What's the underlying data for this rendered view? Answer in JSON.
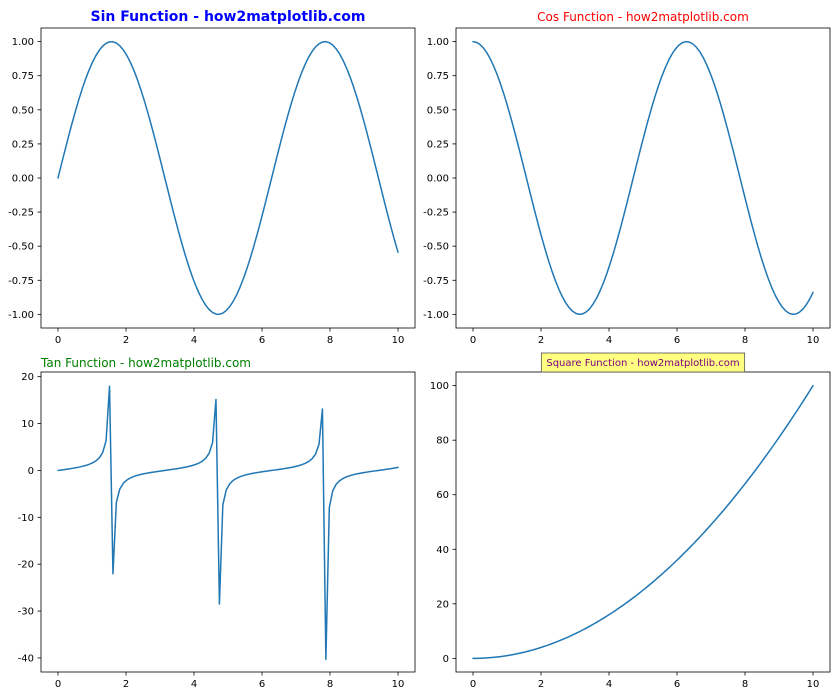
{
  "chart_data": [
    {
      "type": "line",
      "title": "Sin Function - how2matplotlib.com",
      "title_color": "#0000ff",
      "title_style": "bold",
      "title_align": "center",
      "line_color": "#1f77b4",
      "function": "sin",
      "x_range": [
        0,
        10
      ],
      "xlim": [
        -0.5,
        10.5
      ],
      "ylim": [
        -1.1,
        1.1
      ],
      "xticks": [
        0,
        2,
        4,
        6,
        8,
        10
      ],
      "yticks": [
        -1.0,
        -0.75,
        -0.5,
        -0.25,
        0.0,
        0.25,
        0.5,
        0.75,
        1.0
      ],
      "ytick_labels": [
        "-1.00",
        "-0.75",
        "-0.50",
        "-0.25",
        "0.00",
        "0.25",
        "0.50",
        "0.75",
        "1.00"
      ],
      "grid": false
    },
    {
      "type": "line",
      "title": "Cos Function - how2matplotlib.com",
      "title_color": "#ff0000",
      "title_style": "normal",
      "title_align": "center",
      "line_color": "#1f77b4",
      "function": "cos",
      "x_range": [
        0,
        10
      ],
      "xlim": [
        -0.5,
        10.5
      ],
      "ylim": [
        -1.1,
        1.1
      ],
      "xticks": [
        0,
        2,
        4,
        6,
        8,
        10
      ],
      "yticks": [
        -1.0,
        -0.75,
        -0.5,
        -0.25,
        0.0,
        0.25,
        0.5,
        0.75,
        1.0
      ],
      "ytick_labels": [
        "-1.00",
        "-0.75",
        "-0.50",
        "-0.25",
        "0.00",
        "0.25",
        "0.50",
        "0.75",
        "1.00"
      ],
      "grid": false
    },
    {
      "type": "line",
      "title": "Tan Function - how2matplotlib.com",
      "title_color": "#008000",
      "title_style": "normal",
      "title_align": "left",
      "line_color": "#1f77b4",
      "function": "tan",
      "x_range": [
        0,
        10
      ],
      "xlim": [
        -0.5,
        10.5
      ],
      "ylim": [
        -43,
        21
      ],
      "xticks": [
        0,
        2,
        4,
        6,
        8,
        10
      ],
      "yticks": [
        -40,
        -30,
        -20,
        -10,
        0,
        10,
        20
      ],
      "ytick_labels": [
        "-40",
        "-30",
        "-20",
        "-10",
        "0",
        "10",
        "20"
      ],
      "grid": false
    },
    {
      "type": "line",
      "title": "Square Function - how2matplotlib.com",
      "title_color": "#800080",
      "title_style": "boxed",
      "title_box_color": "#ffff80",
      "title_align": "center",
      "line_color": "#1f77b4",
      "function": "square",
      "x_range": [
        0,
        10
      ],
      "xlim": [
        -0.5,
        10.5
      ],
      "ylim": [
        -5,
        105
      ],
      "xticks": [
        0,
        2,
        4,
        6,
        8,
        10
      ],
      "yticks": [
        0,
        20,
        40,
        60,
        80,
        100
      ],
      "ytick_labels": [
        "0",
        "20",
        "40",
        "60",
        "80",
        "100"
      ],
      "grid": false
    }
  ]
}
